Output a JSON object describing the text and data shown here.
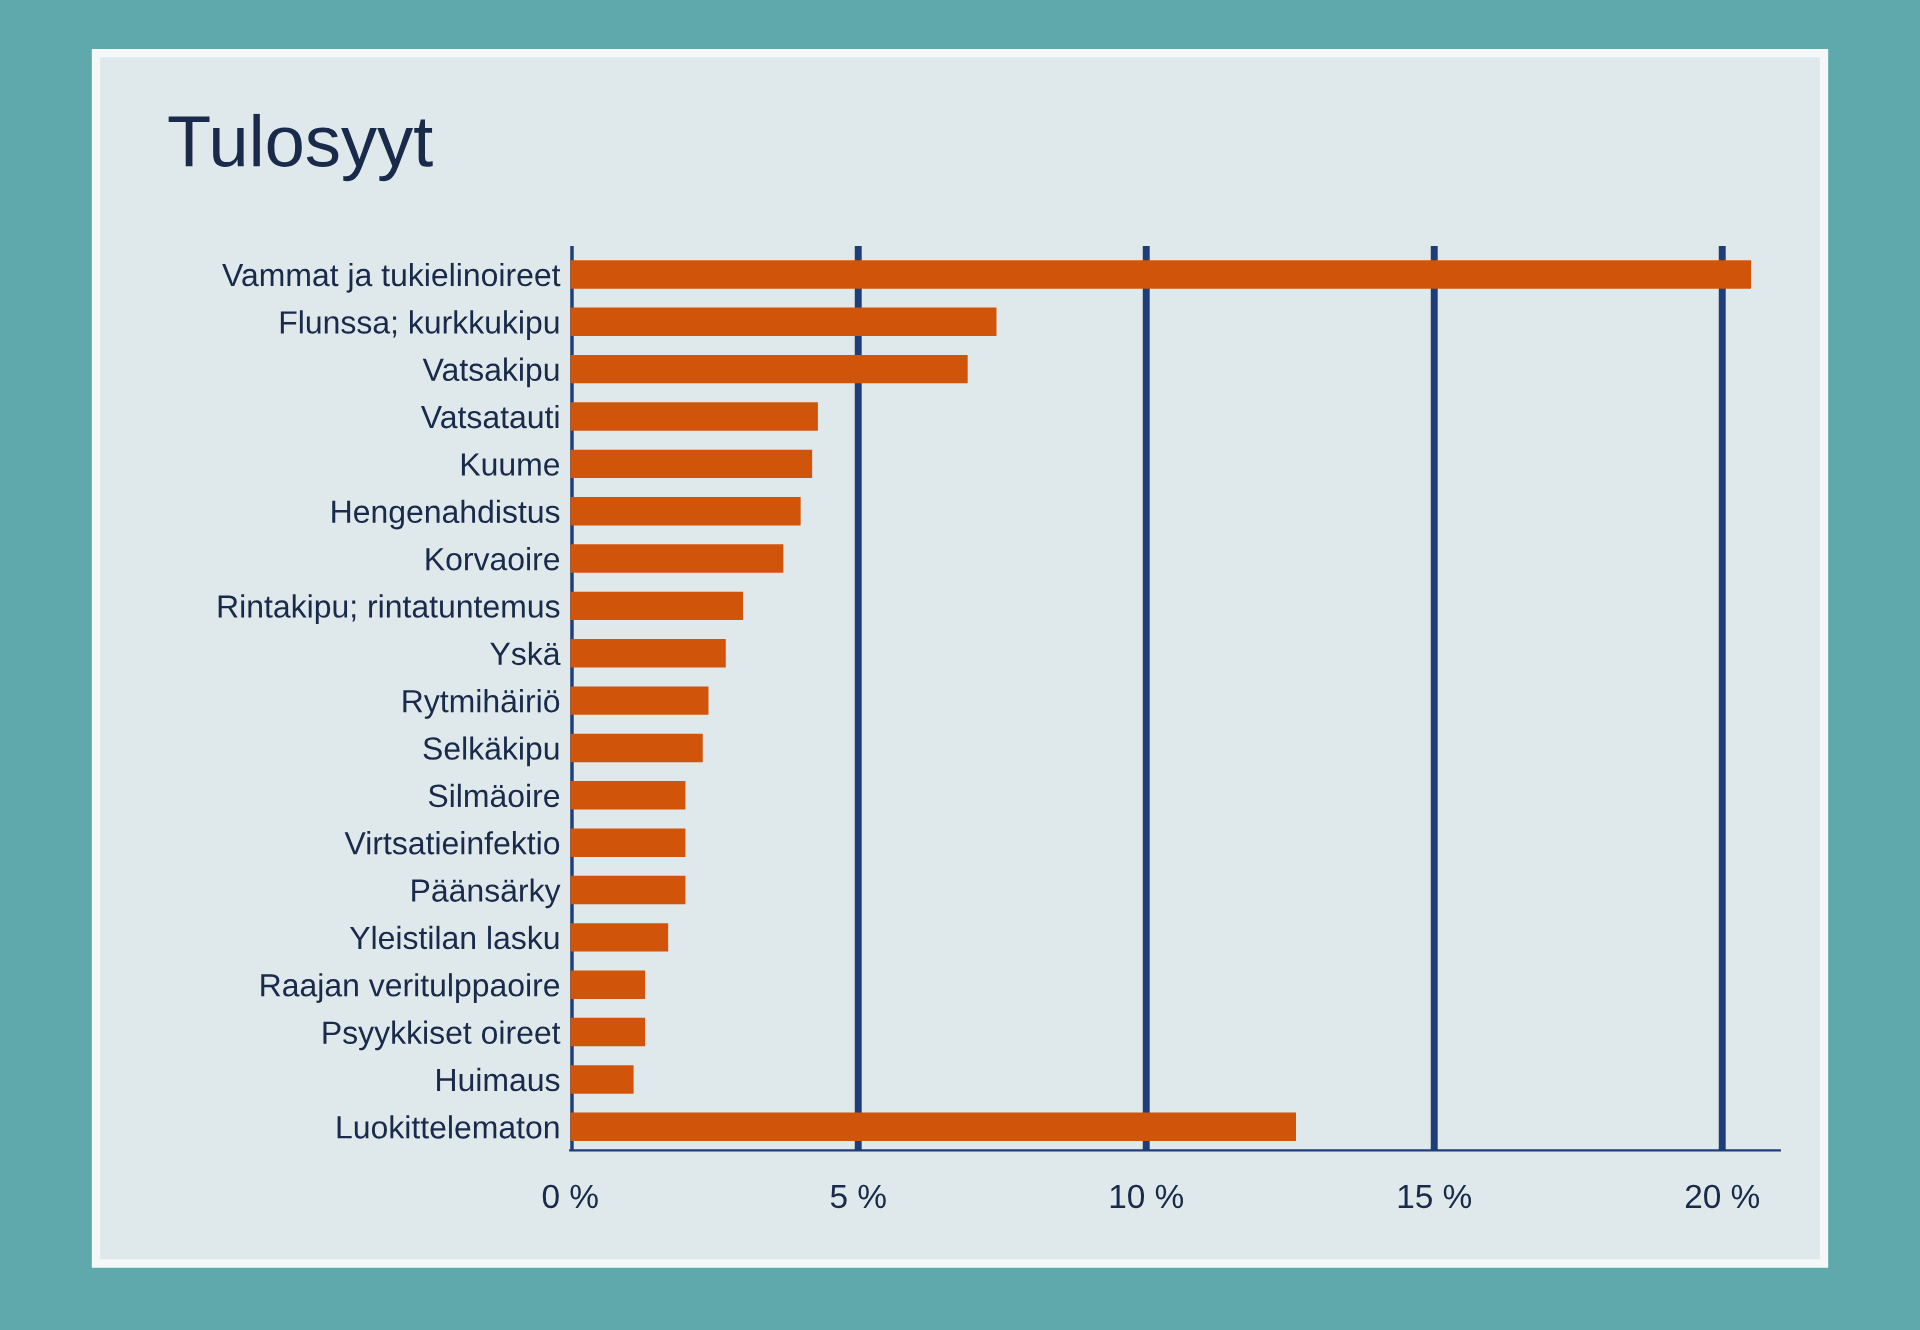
{
  "chart_data": {
    "type": "bar",
    "orientation": "horizontal",
    "title": "Tulosyyt",
    "categories": [
      "Vammat ja tukielinoireet",
      "Flunssa; kurkkukipu",
      "Vatsakipu",
      "Vatsatauti",
      "Kuume",
      "Hengenahdistus",
      "Korvaoire",
      "Rintakipu; rintatuntemus",
      "Yskä",
      "Rytmihäiriö",
      "Selkäkipu",
      "Silmäoire",
      "Virtsatieinfektio",
      "Päänsärky",
      "Yleistilan lasku",
      "Raajan veritulppaoire",
      "Psyykkiset oireet",
      "Huimaus",
      "Luokittelematon"
    ],
    "values": [
      20.5,
      7.4,
      6.9,
      4.3,
      4.2,
      4.0,
      3.7,
      3.0,
      2.7,
      2.4,
      2.3,
      2.0,
      2.0,
      2.0,
      1.7,
      1.3,
      1.3,
      1.1,
      12.6
    ],
    "color": "#d0550a",
    "xlim": [
      0,
      21
    ],
    "xticks": [
      {
        "value": 0,
        "label": "0 %"
      },
      {
        "value": 5,
        "label": "5 %"
      },
      {
        "value": 10,
        "label": "10 %"
      },
      {
        "value": 15,
        "label": "15 %"
      },
      {
        "value": 20,
        "label": "20 %"
      }
    ],
    "grid": "x"
  }
}
